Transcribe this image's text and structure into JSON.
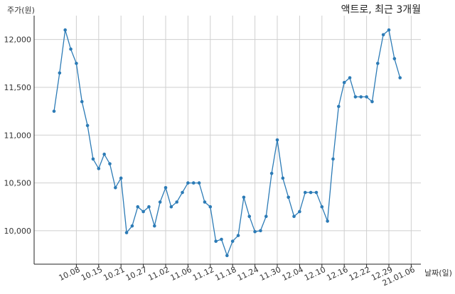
{
  "chart_data": {
    "type": "line",
    "title": "액트로, 최근 3개월",
    "ylabel": "주가(원)",
    "xlabel": "날짜(일)",
    "ylim": [
      9650,
      12250
    ],
    "yticks": [
      10000,
      10500,
      11000,
      11500,
      12000
    ],
    "ytick_labels": [
      "10,000",
      "10,500",
      "11,000",
      "11,500",
      "12,000"
    ],
    "xtick_labels": [
      "10.08",
      "10.15",
      "10.21",
      "10.27",
      "11.02",
      "11.06",
      "11.12",
      "11.18",
      "11.24",
      "11.30",
      "12.04",
      "12.10",
      "12.16",
      "12.22",
      "12.29",
      "21.01.06"
    ],
    "xtick_index": [
      4,
      8,
      12,
      16,
      20,
      24,
      28,
      32,
      36,
      40,
      44,
      48,
      52,
      56,
      60,
      64
    ],
    "grid": true,
    "series": [
      {
        "color": "#2c7bb6",
        "values": [
          11250,
          11650,
          12100,
          11900,
          11750,
          11350,
          11100,
          10750,
          10650,
          10800,
          10700,
          10450,
          10550,
          9980,
          10050,
          10250,
          10200,
          10250,
          10050,
          10300,
          10450,
          10250,
          10300,
          10400,
          10500,
          10500,
          10500,
          10300,
          10250,
          9890,
          9910,
          9740,
          9890,
          9950,
          10350,
          10150,
          9990,
          10000,
          10150,
          10600,
          10950,
          10550,
          10350,
          10150,
          10200,
          10400,
          10400,
          10400,
          10250,
          10100,
          10750,
          11300,
          11550,
          11600,
          11400,
          11400,
          11400,
          11350,
          11750,
          12050,
          12100,
          11800,
          11600
        ]
      }
    ]
  }
}
